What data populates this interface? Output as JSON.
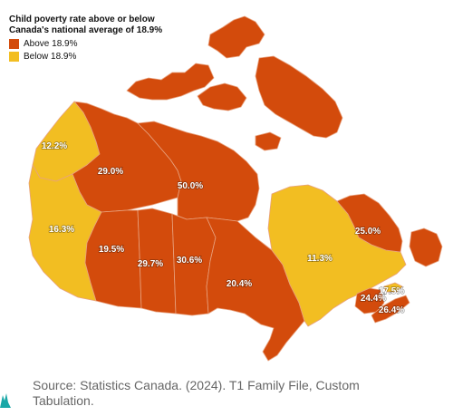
{
  "legend": {
    "title": "Child poverty rate above or below Canada's national average of 18.9%",
    "items": [
      {
        "label": "Above 18.9%",
        "color": "#d34b0c"
      },
      {
        "label": "Below 18.9%",
        "color": "#f2be22"
      }
    ]
  },
  "regions": [
    {
      "name": "Yukon",
      "value": "12.2%",
      "category": "below"
    },
    {
      "name": "Northwest Territories",
      "value": "29.0%",
      "category": "above"
    },
    {
      "name": "Nunavut",
      "value": "50.0%",
      "category": "above"
    },
    {
      "name": "British Columbia",
      "value": "16.3%",
      "category": "below"
    },
    {
      "name": "Alberta",
      "value": "19.5%",
      "category": "above"
    },
    {
      "name": "Saskatchewan",
      "value": "29.7%",
      "category": "above"
    },
    {
      "name": "Manitoba",
      "value": "30.6%",
      "category": "above"
    },
    {
      "name": "Ontario",
      "value": "20.4%",
      "category": "above"
    },
    {
      "name": "Quebec",
      "value": "11.3%",
      "category": "below"
    },
    {
      "name": "Newfoundland and Labrador",
      "value": "25.0%",
      "category": "above"
    },
    {
      "name": "Prince Edward Island",
      "value": "17.5%",
      "category": "below"
    },
    {
      "name": "New Brunswick",
      "value": "24.4%",
      "category": "above"
    },
    {
      "name": "Nova Scotia",
      "value": "26.4%",
      "category": "above"
    }
  ],
  "source": "Source: Statistics Canada. (2024). T1 Family File, Custom Tabulation.",
  "colors": {
    "above": "#d34b0c",
    "below": "#f2be22",
    "border": "#e8a27f"
  }
}
